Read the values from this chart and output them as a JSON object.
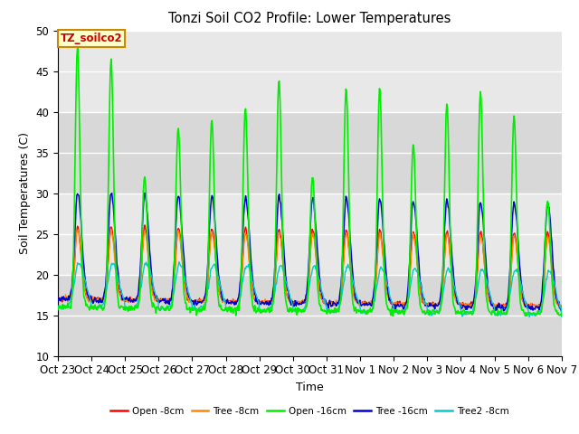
{
  "title": "Tonzi Soil CO2 Profile: Lower Temperatures",
  "xlabel": "Time",
  "ylabel": "Soil Temperatures (C)",
  "ylim": [
    10,
    50
  ],
  "xlim_days": [
    0,
    15
  ],
  "background_color": "#e8e8e8",
  "plot_bg_bands": [
    {
      "ymin": 10,
      "ymax": 20,
      "color": "#d8d8d8"
    },
    {
      "ymin": 30,
      "ymax": 40,
      "color": "#d8d8d8"
    }
  ],
  "annotation_text": "TZ_soilco2",
  "annotation_bg": "#ffffcc",
  "annotation_border": "#cc8800",
  "annotation_text_color": "#cc0000",
  "x_tick_labels": [
    "Oct 23",
    "Oct 24",
    "Oct 25",
    "Oct 26",
    "Oct 27",
    "Oct 28",
    "Oct 29",
    "Oct 30",
    "Oct 31",
    "Nov 1",
    "Nov 2",
    "Nov 3",
    "Nov 4",
    "Nov 5",
    "Nov 6",
    "Nov 7"
  ],
  "colors": {
    "open8": "#ff0000",
    "tree8": "#ff8800",
    "open16": "#00ee00",
    "tree16": "#0000cc",
    "tree2_8": "#00cccc"
  },
  "legend_labels": [
    "Open -8cm",
    "Tree -8cm",
    "Open -16cm",
    "Tree -16cm",
    "Tree2 -8cm"
  ],
  "n_days": 15,
  "pts_per_day": 48
}
